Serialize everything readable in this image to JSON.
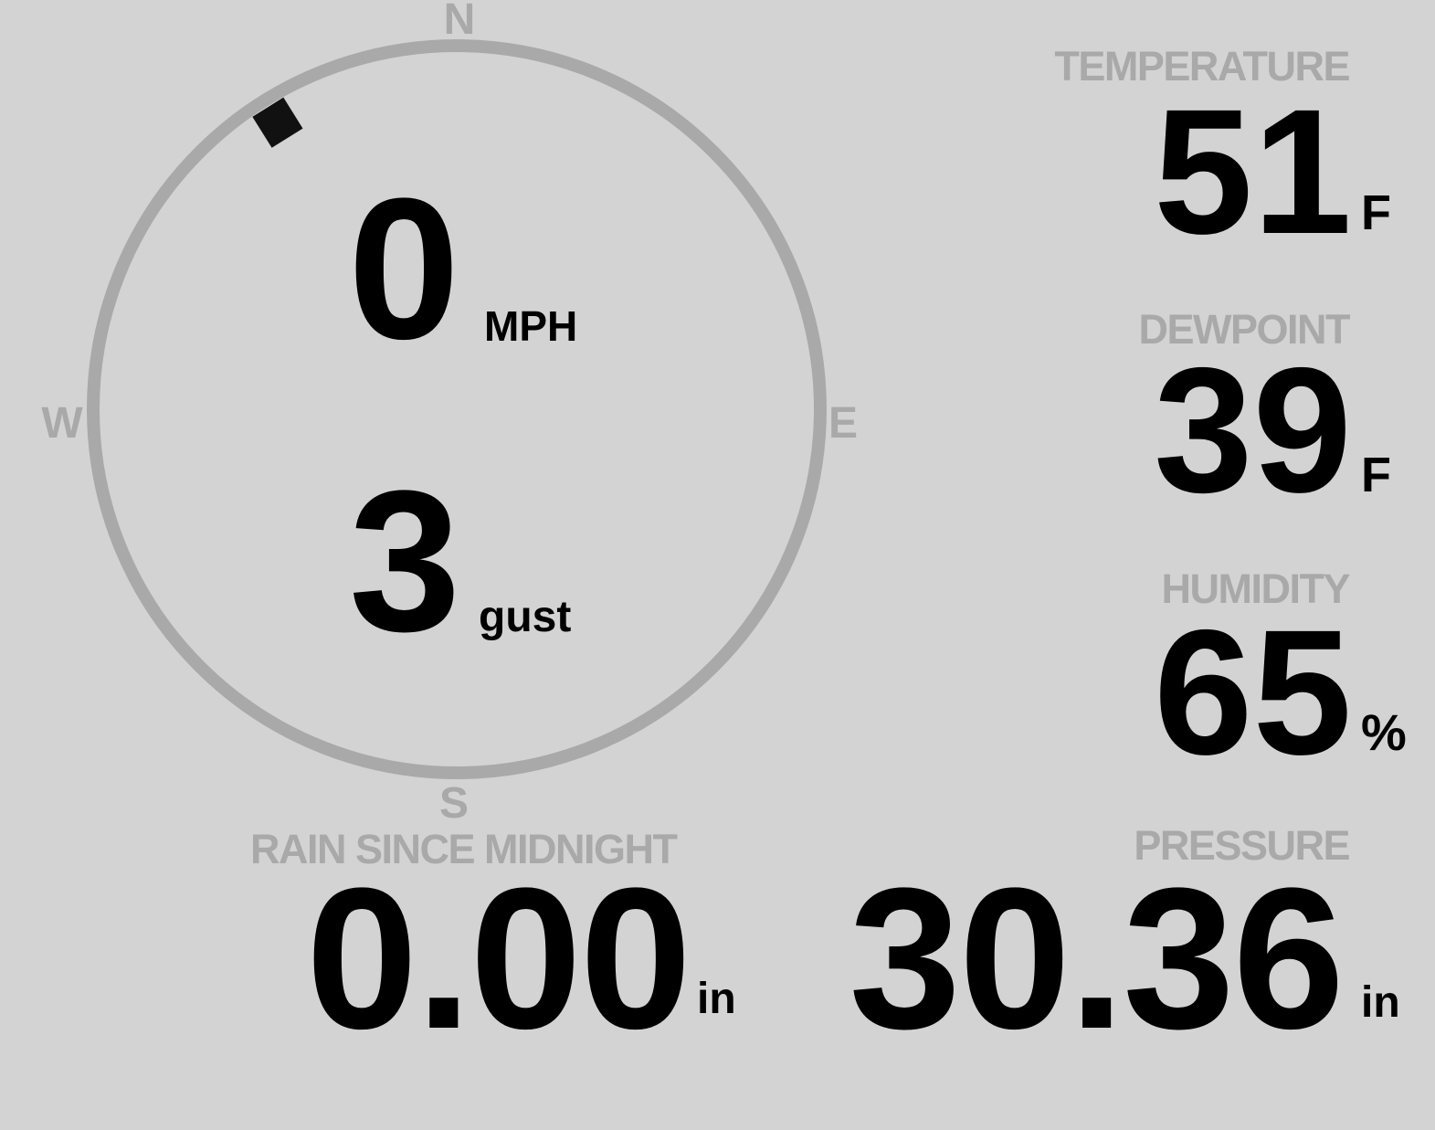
{
  "theme": {
    "background": "#d3d3d3",
    "muted": "#a9a9a9",
    "text": "#000000",
    "marker": "#111111"
  },
  "wind": {
    "compass": {
      "cardinals": {
        "north": "N",
        "east": "E",
        "south": "S",
        "west": "W"
      },
      "direction_deg": 328
    },
    "speed": {
      "value": "0",
      "unit": "MPH"
    },
    "gust": {
      "value": "3",
      "unit": "gust"
    }
  },
  "metrics": {
    "temperature": {
      "label": "TEMPERATURE",
      "value": "51",
      "unit": "F"
    },
    "dewpoint": {
      "label": "DEWPOINT",
      "value": "39",
      "unit": "F"
    },
    "humidity": {
      "label": "HUMIDITY",
      "value": "65",
      "unit": "%"
    },
    "rain_since_midnight": {
      "label": "RAIN SINCE MIDNIGHT",
      "value": "0.00",
      "unit": "in"
    },
    "pressure": {
      "label": "PRESSURE",
      "value": "30.36",
      "unit": "in"
    }
  }
}
